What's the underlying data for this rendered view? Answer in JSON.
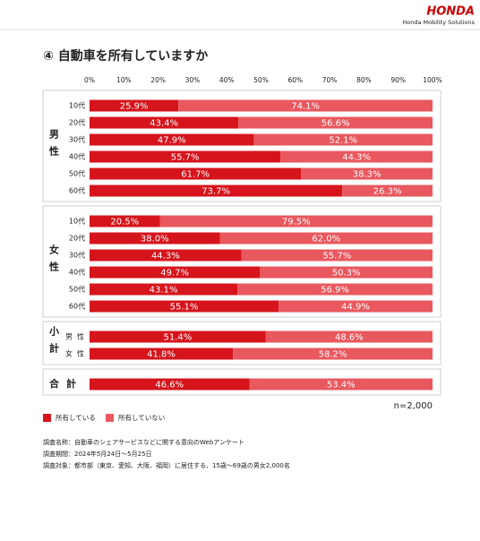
{
  "header": {
    "logo": "HONDA",
    "subtitle": "Honda Mobility Solutions"
  },
  "chart_data": {
    "type": "stacked-bar",
    "title": "④ 自動車を所有していますか",
    "xlim": [
      0,
      100
    ],
    "xticks": [
      {
        "value": 0,
        "label": "0%"
      },
      {
        "value": 10,
        "label": "10%"
      },
      {
        "value": 20,
        "label": "20%"
      },
      {
        "value": 30,
        "label": "30%"
      },
      {
        "value": 40,
        "label": "40%"
      },
      {
        "value": 50,
        "label": "50%"
      },
      {
        "value": 60,
        "label": "60%"
      },
      {
        "value": 70,
        "label": "70%"
      },
      {
        "value": 80,
        "label": "80%"
      },
      {
        "value": 90,
        "label": "90%"
      },
      {
        "value": 100,
        "label": "100%"
      }
    ],
    "series": [
      {
        "name": "所有している",
        "color": "#d5141c"
      },
      {
        "name": "所有していない",
        "color": "#e8585e"
      }
    ],
    "groups": [
      {
        "name": "男性",
        "categories": [
          "10代",
          "20代",
          "30代",
          "40代",
          "50代",
          "60代"
        ],
        "values": [
          [
            25.9,
            43.4,
            47.9,
            55.7,
            61.7,
            73.7
          ],
          [
            74.1,
            56.6,
            52.1,
            44.3,
            38.3,
            26.3
          ]
        ],
        "value_labels": [
          [
            "25.9%",
            "43.4%",
            "47.9%",
            "55.7%",
            "61.7%",
            "73.7%"
          ],
          [
            "74.1%",
            "56.6%",
            "52.1%",
            "44.3%",
            "38.3%",
            "26.3%"
          ]
        ]
      },
      {
        "name": "女性",
        "categories": [
          "10代",
          "20代",
          "30代",
          "40代",
          "50代",
          "60代"
        ],
        "values": [
          [
            20.5,
            38.0,
            44.3,
            49.7,
            43.1,
            55.1
          ],
          [
            79.5,
            62.0,
            55.7,
            50.3,
            56.9,
            44.9
          ]
        ],
        "value_labels": [
          [
            "20.5%",
            "38.0%",
            "44.3%",
            "49.7%",
            "43.1%",
            "55.1%"
          ],
          [
            "79.5%",
            "62.0%",
            "55.7%",
            "50.3%",
            "56.9%",
            "44.9%"
          ]
        ]
      },
      {
        "name": "小計",
        "categories": [
          "男性",
          "女性"
        ],
        "values": [
          [
            51.4,
            41.8
          ],
          [
            48.6,
            58.2
          ]
        ],
        "value_labels": [
          [
            "51.4%",
            "41.8%"
          ],
          [
            "48.6%",
            "58.2%"
          ]
        ]
      },
      {
        "name": "合計",
        "categories": [
          null
        ],
        "values": [
          [
            46.6
          ],
          [
            53.4
          ]
        ],
        "value_labels": [
          [
            "46.6%"
          ],
          [
            "53.4%"
          ]
        ]
      }
    ],
    "sample_note": "n=2,000",
    "notes": [
      "調査名称：自動車のシェアサービスなどに関する意向のWebアンケート",
      "調査期間：2024年5月24日〜5月25日",
      "調査対象：都市部（東京、愛知、大阪、福岡）に居住する、15歳〜69歳の男女2,000名"
    ]
  }
}
